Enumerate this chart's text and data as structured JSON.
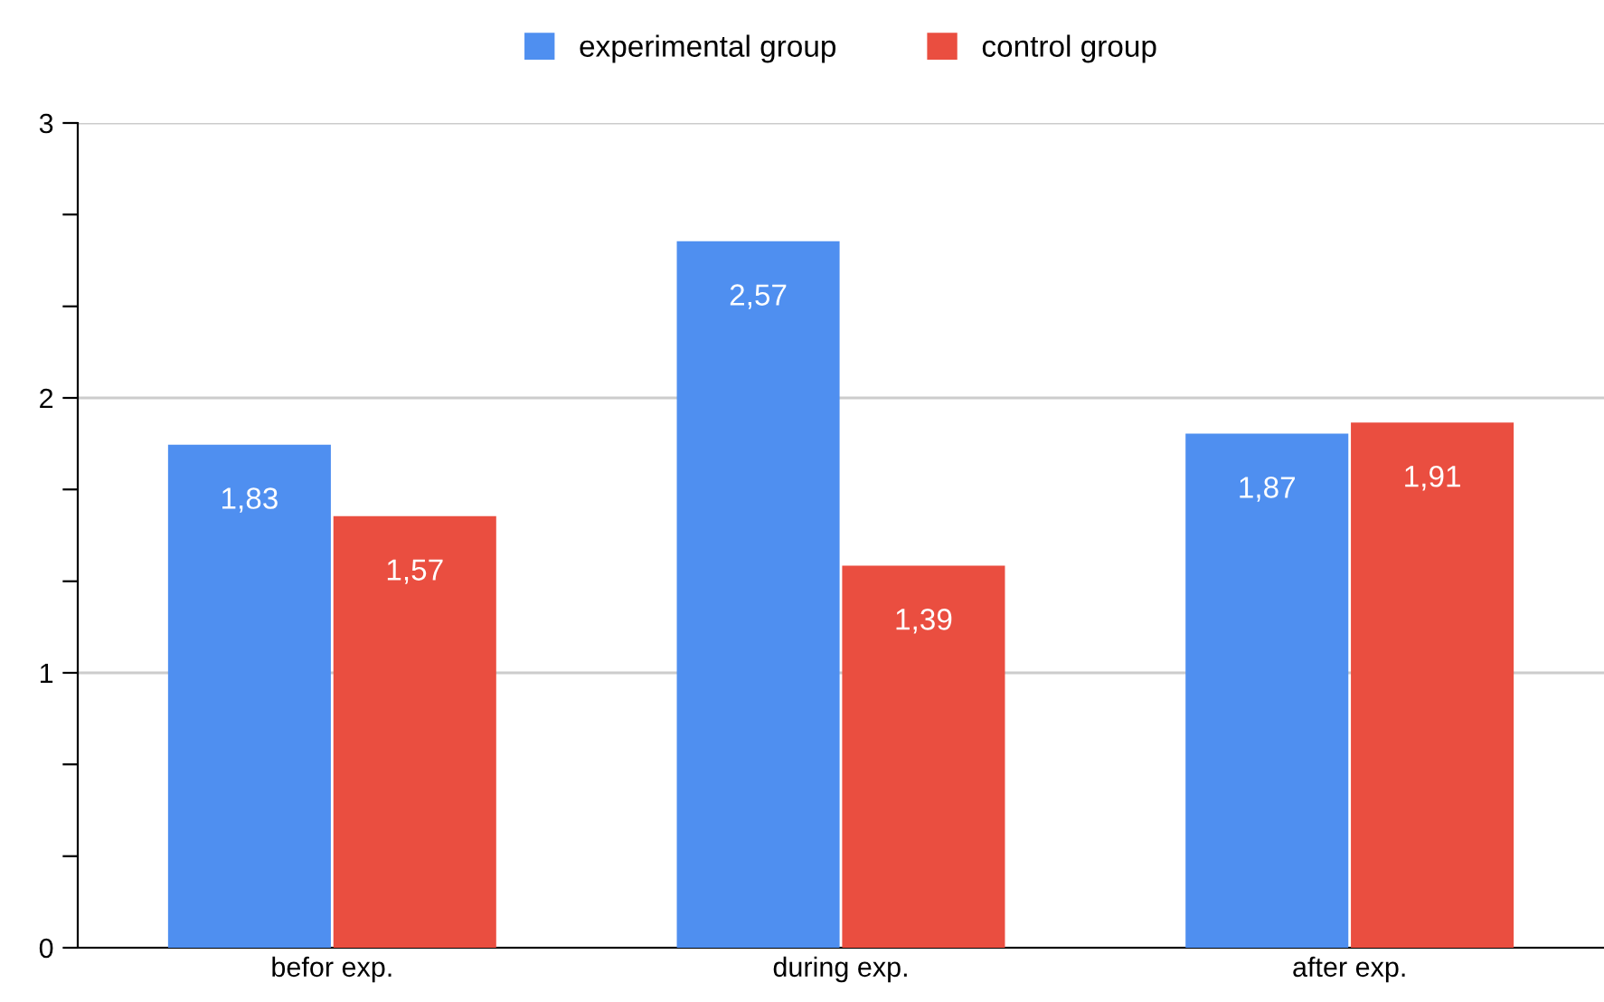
{
  "chart_data": {
    "type": "bar",
    "categories": [
      "befor exp.",
      "during exp.",
      "after exp."
    ],
    "series": [
      {
        "name": "experimental group",
        "color": "#4f8ff0",
        "values": [
          1.83,
          2.57,
          1.87
        ],
        "value_labels": [
          "1,83",
          "2,57",
          "1,87"
        ]
      },
      {
        "name": "control group",
        "color": "#ea4e40",
        "values": [
          1.57,
          1.39,
          1.91
        ],
        "value_labels": [
          "1,57",
          "1,39",
          "1,91"
        ]
      }
    ],
    "ylim": [
      0,
      3
    ],
    "yticks": [
      0,
      {
        "value": 0.333,
        "label": null
      },
      {
        "value": 0.667,
        "label": null
      },
      1,
      {
        "value": 1.333,
        "label": null
      },
      {
        "value": 1.667,
        "label": null
      },
      2,
      {
        "value": 2.333,
        "label": null
      },
      {
        "value": 2.667,
        "label": null
      },
      3
    ],
    "grid": "y",
    "legend": "top"
  }
}
